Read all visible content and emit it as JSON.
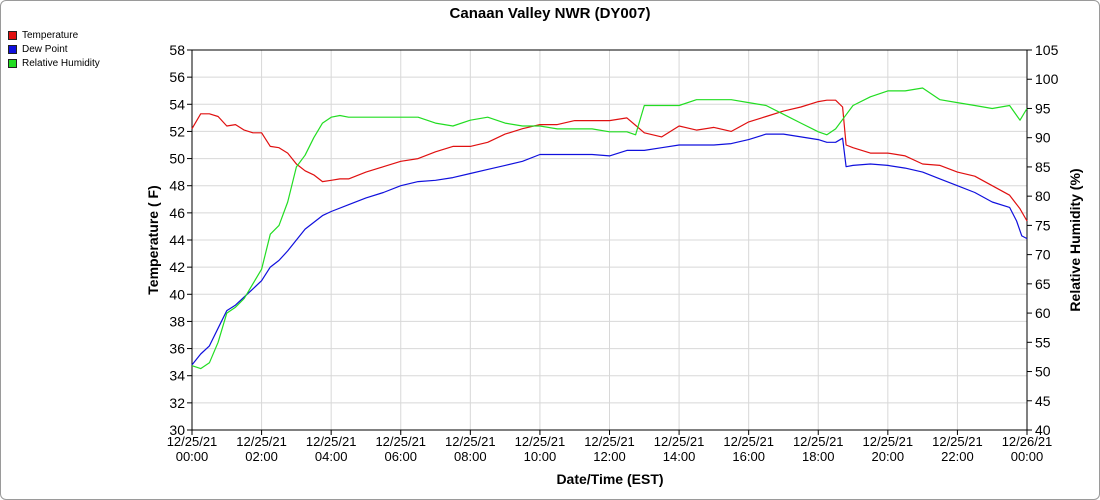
{
  "colors": {
    "temperature": "#e01010",
    "dew_point": "#1010dd",
    "relative_humidity": "#22dd22",
    "grid": "#d8d8d8",
    "axis": "#000000"
  },
  "chart_data": {
    "type": "line",
    "title": "Canaan Valley NWR (DY007)",
    "xlabel": "Date/Time (EST)",
    "ylabel": "Temperature ( F)",
    "y2label": "Relative Humidity (%)",
    "x_ticks": [
      [
        "12/25/21",
        "00:00"
      ],
      [
        "12/25/21",
        "02:00"
      ],
      [
        "12/25/21",
        "04:00"
      ],
      [
        "12/25/21",
        "06:00"
      ],
      [
        "12/25/21",
        "08:00"
      ],
      [
        "12/25/21",
        "10:00"
      ],
      [
        "12/25/21",
        "12:00"
      ],
      [
        "12/25/21",
        "14:00"
      ],
      [
        "12/25/21",
        "16:00"
      ],
      [
        "12/25/21",
        "18:00"
      ],
      [
        "12/25/21",
        "20:00"
      ],
      [
        "12/25/21",
        "22:00"
      ],
      [
        "12/26/21",
        "00:00"
      ]
    ],
    "xlim_hours": [
      0,
      24
    ],
    "ylim": [
      30,
      58
    ],
    "yticks": [
      30,
      32,
      34,
      36,
      38,
      40,
      42,
      44,
      46,
      48,
      50,
      52,
      54,
      56,
      58
    ],
    "y2lim": [
      40,
      105
    ],
    "y2ticks": [
      40,
      45,
      50,
      55,
      60,
      65,
      70,
      75,
      80,
      85,
      90,
      95,
      100,
      105
    ],
    "grid": true,
    "legend_position": "top-left",
    "series": [
      {
        "name": "Temperature",
        "axis": "left",
        "color": "#e01010",
        "x": [
          0,
          0.25,
          0.5,
          0.75,
          1,
          1.25,
          1.5,
          1.75,
          2,
          2.25,
          2.5,
          2.75,
          3,
          3.25,
          3.5,
          3.75,
          4,
          4.25,
          4.5,
          5,
          5.5,
          6,
          6.5,
          7,
          7.5,
          8,
          8.5,
          9,
          9.5,
          10,
          10.5,
          11,
          11.5,
          12,
          12.5,
          13,
          13.5,
          14,
          14.5,
          15,
          15.5,
          16,
          16.5,
          17,
          17.5,
          18,
          18.25,
          18.5,
          18.7,
          18.8,
          19,
          19.5,
          20,
          20.5,
          21,
          21.5,
          22,
          22.5,
          23,
          23.5,
          23.8,
          24
        ],
        "y": [
          52.2,
          53.3,
          53.3,
          53.1,
          52.4,
          52.5,
          52.1,
          51.9,
          51.9,
          50.9,
          50.8,
          50.4,
          49.6,
          49.1,
          48.8,
          48.3,
          48.4,
          48.5,
          48.5,
          49.0,
          49.4,
          49.8,
          50.0,
          50.5,
          50.9,
          50.9,
          51.2,
          51.8,
          52.2,
          52.5,
          52.5,
          52.8,
          52.8,
          52.8,
          53.0,
          51.9,
          51.6,
          52.4,
          52.1,
          52.3,
          52.0,
          52.7,
          53.1,
          53.5,
          53.8,
          54.2,
          54.3,
          54.3,
          53.8,
          51.0,
          50.8,
          50.4,
          50.4,
          50.2,
          49.6,
          49.5,
          49.0,
          48.7,
          48.0,
          47.3,
          46.3,
          45.4
        ]
      },
      {
        "name": "Dew Point",
        "axis": "left",
        "color": "#1010dd",
        "x": [
          0,
          0.25,
          0.5,
          0.75,
          1,
          1.25,
          1.5,
          1.75,
          2,
          2.25,
          2.5,
          2.75,
          3,
          3.25,
          3.5,
          3.75,
          4,
          4.5,
          5,
          5.5,
          6,
          6.5,
          7,
          7.5,
          8,
          8.5,
          9,
          9.5,
          10,
          10.5,
          11,
          11.5,
          12,
          12.5,
          13,
          13.5,
          14,
          14.5,
          15,
          15.5,
          16,
          16.5,
          17,
          17.5,
          18,
          18.25,
          18.5,
          18.7,
          18.8,
          19,
          19.5,
          20,
          20.5,
          21,
          21.5,
          22,
          22.5,
          23,
          23.5,
          23.7,
          23.85,
          24
        ],
        "y": [
          34.8,
          35.6,
          36.2,
          37.5,
          38.8,
          39.2,
          39.8,
          40.4,
          41.0,
          42.0,
          42.5,
          43.2,
          44.0,
          44.8,
          45.3,
          45.8,
          46.1,
          46.6,
          47.1,
          47.5,
          48.0,
          48.3,
          48.4,
          48.6,
          48.9,
          49.2,
          49.5,
          49.8,
          50.3,
          50.3,
          50.3,
          50.3,
          50.2,
          50.6,
          50.6,
          50.8,
          51.0,
          51.0,
          51.0,
          51.1,
          51.4,
          51.8,
          51.8,
          51.6,
          51.4,
          51.2,
          51.2,
          51.5,
          49.4,
          49.5,
          49.6,
          49.5,
          49.3,
          49.0,
          48.5,
          48.0,
          47.5,
          46.8,
          46.4,
          45.4,
          44.3,
          44.1
        ]
      },
      {
        "name": "Relative Humidity",
        "axis": "right",
        "color": "#22dd22",
        "x": [
          0,
          0.25,
          0.5,
          0.75,
          1,
          1.25,
          1.5,
          1.75,
          2,
          2.25,
          2.5,
          2.75,
          3,
          3.25,
          3.5,
          3.75,
          4,
          4.25,
          4.5,
          5,
          5.5,
          6,
          6.5,
          7,
          7.5,
          8,
          8.5,
          9,
          9.5,
          10,
          10.5,
          11,
          11.5,
          12,
          12.5,
          12.75,
          13,
          13.5,
          14,
          14.5,
          15,
          15.5,
          16,
          16.5,
          17,
          17.5,
          18,
          18.25,
          18.5,
          18.75,
          19,
          19.5,
          20,
          20.5,
          21,
          21.5,
          22,
          22.5,
          23,
          23.5,
          23.8,
          24
        ],
        "y": [
          51.0,
          50.5,
          51.5,
          55.0,
          60.0,
          61.0,
          62.5,
          65.0,
          67.5,
          73.5,
          75.0,
          79.0,
          85.0,
          87.0,
          90.0,
          92.5,
          93.5,
          93.8,
          93.5,
          93.5,
          93.5,
          93.5,
          93.5,
          92.5,
          92.0,
          93.0,
          93.5,
          92.5,
          92.0,
          92.0,
          91.5,
          91.5,
          91.5,
          91.0,
          91.0,
          90.5,
          95.5,
          95.5,
          95.5,
          96.5,
          96.5,
          96.5,
          96.0,
          95.5,
          94.0,
          92.5,
          91.0,
          90.5,
          91.5,
          93.5,
          95.5,
          97.0,
          98.0,
          98.0,
          98.5,
          96.5,
          96.0,
          95.5,
          95.0,
          95.5,
          93.0,
          95.0
        ]
      }
    ]
  }
}
